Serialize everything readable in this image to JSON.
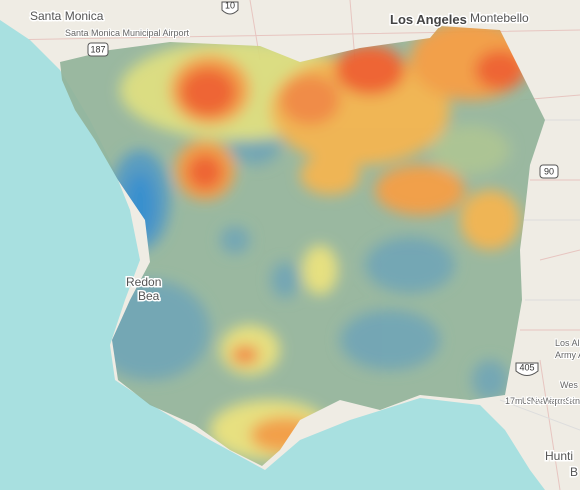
{
  "map": {
    "labels": [
      "Santa Monica",
      "Santa Monica Municipal Airport",
      "Los Angeles",
      "Montebello",
      "Redon",
      "Bea",
      "Los Al",
      "Army A",
      "17m",
      "U.S. Naval Weapons Station",
      "Wes",
      "Hunti",
      "B"
    ],
    "shields": [
      "10",
      "187",
      "90",
      "405"
    ]
  }
}
